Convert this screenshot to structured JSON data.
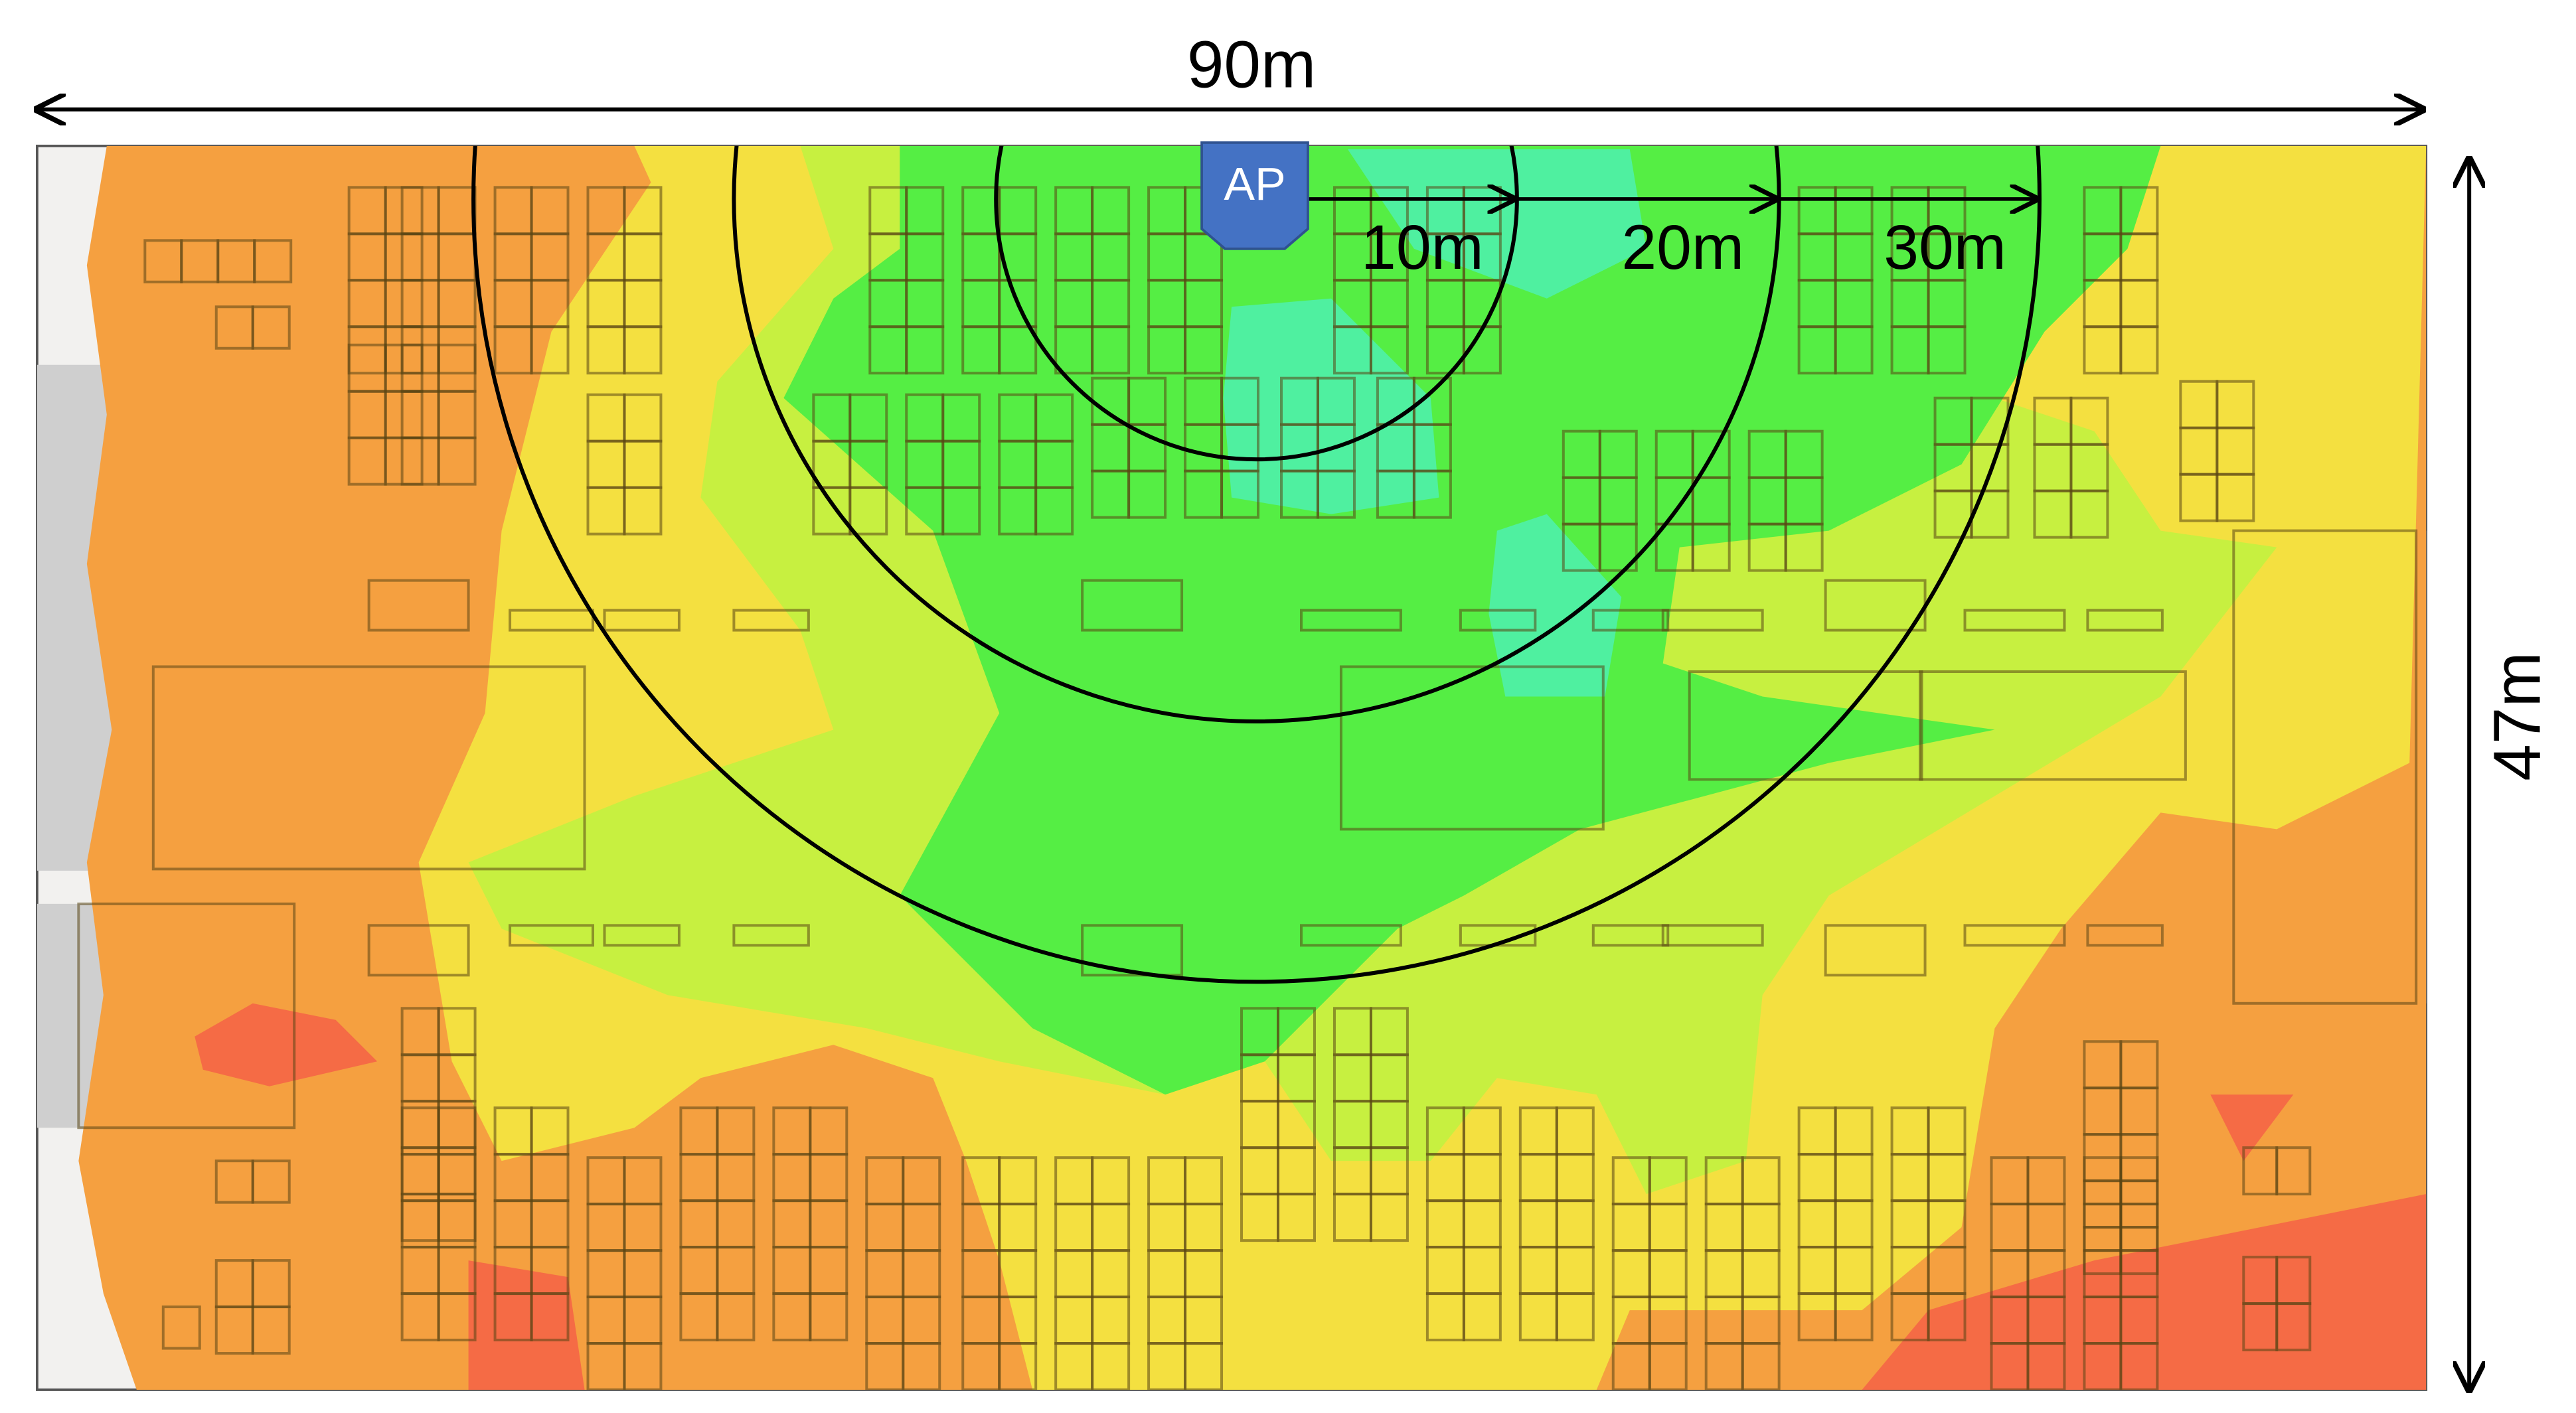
{
  "dimensions": {
    "width_label": "90m",
    "height_label": "47m"
  },
  "access_point": {
    "label": "AP"
  },
  "rings": [
    {
      "label": "10m"
    },
    {
      "label": "20m"
    },
    {
      "label": "30m"
    }
  ]
}
